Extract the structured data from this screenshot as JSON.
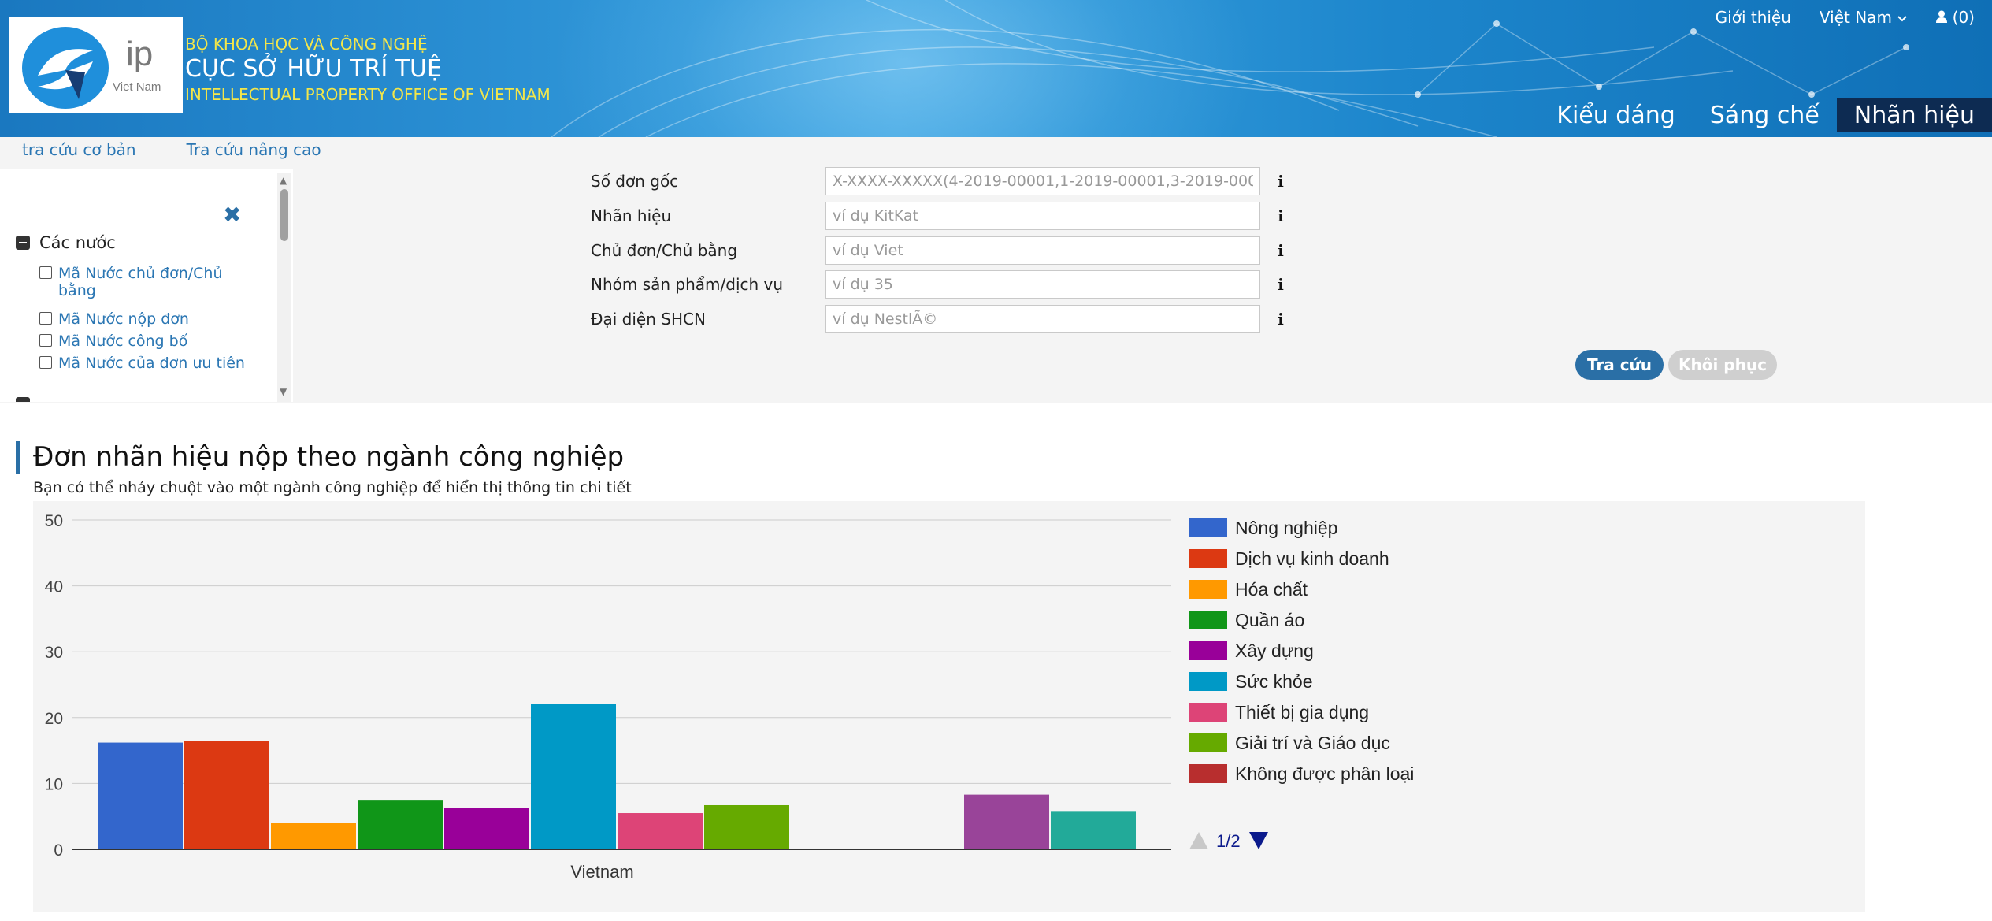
{
  "header": {
    "logo_ip": "ip",
    "logo_country": "Viet Nam",
    "ministry": "BỘ KHOA HỌC VÀ CÔNG NGHỆ",
    "office": "CỤC SỞ HỮU TRÍ TUỆ",
    "office_en": "INTELLECTUAL PROPERTY OFFICE OF VIETNAM",
    "about": "Giới thiệu",
    "language": "Việt Nam",
    "cart": "(0)",
    "tabs": [
      {
        "label": "Kiểu dáng",
        "active": false
      },
      {
        "label": "Sáng chế",
        "active": false
      },
      {
        "label": "Nhãn hiệu",
        "active": true
      }
    ]
  },
  "subnav": {
    "basic": "tra cứu cơ bản",
    "advanced": "Tra cứu nâng cao"
  },
  "sidebar": {
    "close_icon": "close-icon",
    "group_label": "Các nước",
    "items": [
      {
        "label": "Mã Nước chủ đơn/Chủ bằng",
        "checked": false
      },
      {
        "label": "Mã Nước nộp đơn",
        "checked": false
      },
      {
        "label": "Mã Nước công bố",
        "checked": false
      },
      {
        "label": "Mã Nước của đơn ưu tiên",
        "checked": false
      }
    ]
  },
  "form": {
    "fields": [
      {
        "label": "Số đơn gốc",
        "placeholder": "X-XXXX-XXXXX(4-2019-00001,1-2019-00001,3-2019-00001)"
      },
      {
        "label": "Nhãn hiệu",
        "placeholder": "ví dụ KitKat"
      },
      {
        "label": "Chủ đơn/Chủ bằng",
        "placeholder": "ví dụ Viet"
      },
      {
        "label": "Nhóm sản phẩm/dịch vụ",
        "placeholder": "ví dụ 35"
      },
      {
        "label": "Đại diện SHCN",
        "placeholder": "ví dụ NestlÃ©"
      }
    ],
    "search_button": "Tra cứu",
    "reset_button": "Khôi phục"
  },
  "section": {
    "title": "Đơn nhãn hiệu nộp theo ngành công nghiệp",
    "subtitle": "Bạn có thể nháy chuột vào một ngành công nghiệp để hiển thị thông tin chi tiết"
  },
  "chart_data": {
    "type": "bar",
    "categories": [
      "Vietnam"
    ],
    "ylim": [
      0,
      50
    ],
    "yticks": [
      0,
      10,
      20,
      30,
      40,
      50
    ],
    "grid": true,
    "legend_position": "right",
    "legend_page": "1/2",
    "series": [
      {
        "name": "Nông nghiệp",
        "values": [
          16.2
        ],
        "color": "#3366cc"
      },
      {
        "name": "Dịch vụ kinh doanh",
        "values": [
          16.5
        ],
        "color": "#dc3912"
      },
      {
        "name": "Hóa chất",
        "values": [
          4
        ],
        "color": "#ff9900"
      },
      {
        "name": "Quần áo",
        "values": [
          7.4
        ],
        "color": "#109618"
      },
      {
        "name": "Xây dựng",
        "values": [
          6.3
        ],
        "color": "#990099"
      },
      {
        "name": "Sức khỏe",
        "values": [
          22.1
        ],
        "color": "#0099c6"
      },
      {
        "name": "Thiết bị gia dụng",
        "values": [
          5.5
        ],
        "color": "#dd4477"
      },
      {
        "name": "Giải trí và Giáo dục",
        "values": [
          6.7
        ],
        "color": "#66aa00"
      },
      {
        "name": "Không được phân loại",
        "values": [
          0
        ],
        "color": "#b82e2e"
      },
      {
        "values": [
          0
        ],
        "color": "#316395"
      },
      {
        "values": [
          8.3
        ],
        "color": "#994499"
      },
      {
        "values": [
          5.7
        ],
        "color": "#22aa99"
      }
    ]
  }
}
